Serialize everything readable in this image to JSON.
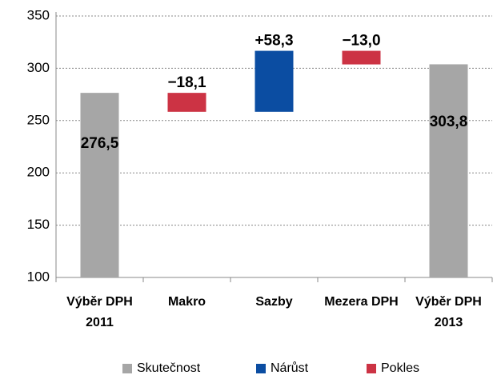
{
  "chart_data": {
    "type": "waterfall",
    "categories": [
      "Výběr DPH 2011",
      "Makro",
      "Sazby",
      "Mezera DPH",
      "Výběr DPH 2013"
    ],
    "series": [
      {
        "name": "Skutečnost",
        "color": "#a6a6a6",
        "kind": "total",
        "values": [
          276.5,
          null,
          null,
          null,
          303.8
        ],
        "value_labels": [
          "276,5",
          null,
          null,
          null,
          "303,8"
        ]
      },
      {
        "name": "Nárůst",
        "color": "#0b4da2",
        "kind": "increase",
        "values": [
          null,
          null,
          58.3,
          null,
          null
        ],
        "value_labels": [
          null,
          null,
          "+58,3",
          null,
          null
        ]
      },
      {
        "name": "Pokles",
        "color": "#cc3344",
        "kind": "decrease",
        "values": [
          null,
          -18.1,
          null,
          -13.0,
          null
        ],
        "value_labels": [
          null,
          "−18,1",
          null,
          "−13,0",
          null
        ]
      }
    ],
    "ylim": [
      100,
      350
    ],
    "yticks": [
      100,
      150,
      200,
      250,
      300,
      350
    ],
    "grid": true
  }
}
